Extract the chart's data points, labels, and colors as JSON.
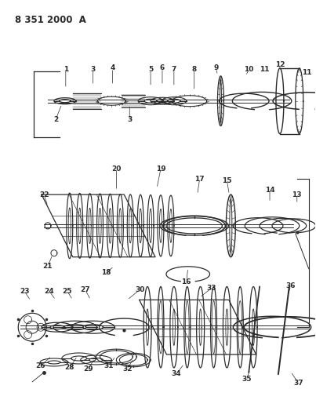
{
  "title": "8 351 2000  A",
  "bg_color": "#ffffff",
  "line_color": "#2a2a2a",
  "figsize": [
    4.03,
    5.33
  ],
  "dpi": 100
}
